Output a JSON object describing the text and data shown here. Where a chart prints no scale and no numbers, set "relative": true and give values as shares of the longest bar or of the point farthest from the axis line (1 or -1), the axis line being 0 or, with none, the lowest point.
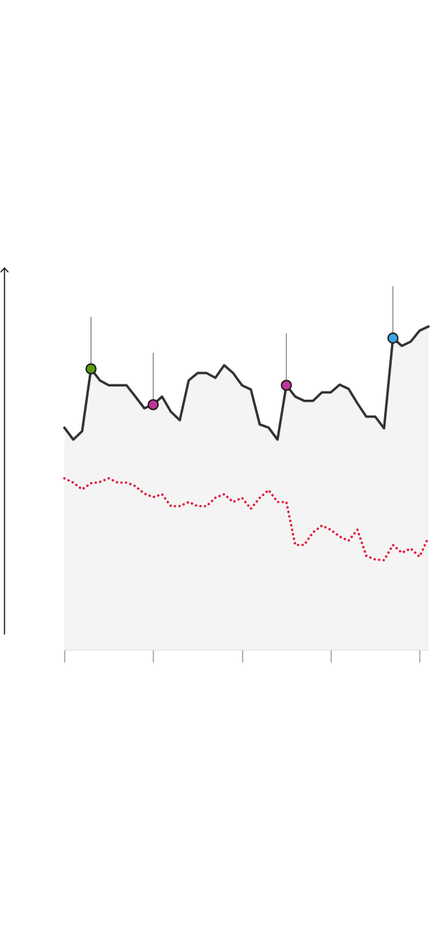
{
  "chart_data": {
    "type": "line",
    "relative": true,
    "categories": [
      null,
      null,
      null,
      null,
      null,
      null,
      null,
      null,
      null,
      null,
      null,
      null,
      null,
      null,
      null,
      null,
      null,
      null,
      null,
      null,
      null,
      null,
      null,
      null,
      null,
      null,
      null,
      null,
      null,
      null,
      null,
      null,
      null,
      null,
      null,
      null,
      null,
      null,
      null,
      null,
      null,
      null
    ],
    "series": [
      {
        "type": "area",
        "color": "#333333",
        "values": [
          0.687,
          0.65,
          0.676,
          0.869,
          0.833,
          0.818,
          0.818,
          0.818,
          0.783,
          0.747,
          0.758,
          0.783,
          0.736,
          0.71,
          0.833,
          0.856,
          0.856,
          0.841,
          0.88,
          0.856,
          0.818,
          0.805,
          0.697,
          0.687,
          0.65,
          0.818,
          0.783,
          0.77,
          0.77,
          0.796,
          0.796,
          0.82,
          0.807,
          0.762,
          0.721,
          0.721,
          0.685,
          0.964,
          0.94,
          0.953,
          0.987,
          1
        ],
        "colors": [
          null,
          null,
          null,
          "#5a9e10",
          null,
          null,
          null,
          null,
          null,
          null,
          "#c2339a",
          null,
          null,
          null,
          null,
          null,
          null,
          null,
          null,
          null,
          null,
          null,
          null,
          null,
          null,
          "#c2339a",
          null,
          null,
          null,
          null,
          null,
          null,
          null,
          null,
          null,
          null,
          null,
          "#3aa5e0",
          null,
          null,
          null,
          null
        ]
      },
      {
        "color": "#e31a3c",
        "line_style": "dotted",
        "values": [
          0.53,
          0.517,
          0.496,
          0.515,
          0.519,
          0.53,
          0.517,
          0.517,
          0.506,
          0.483,
          0.472,
          0.481,
          0.444,
          0.444,
          0.457,
          0.444,
          0.444,
          0.47,
          0.481,
          0.457,
          0.47,
          0.436,
          0.47,
          0.494,
          0.457,
          0.457,
          0.324,
          0.324,
          0.363,
          0.384,
          0.371,
          0.35,
          0.337,
          0.371,
          0.29,
          0.279,
          0.277,
          0.324,
          0.3,
          0.313,
          0.288,
          0.348
        ]
      }
    ]
  }
}
